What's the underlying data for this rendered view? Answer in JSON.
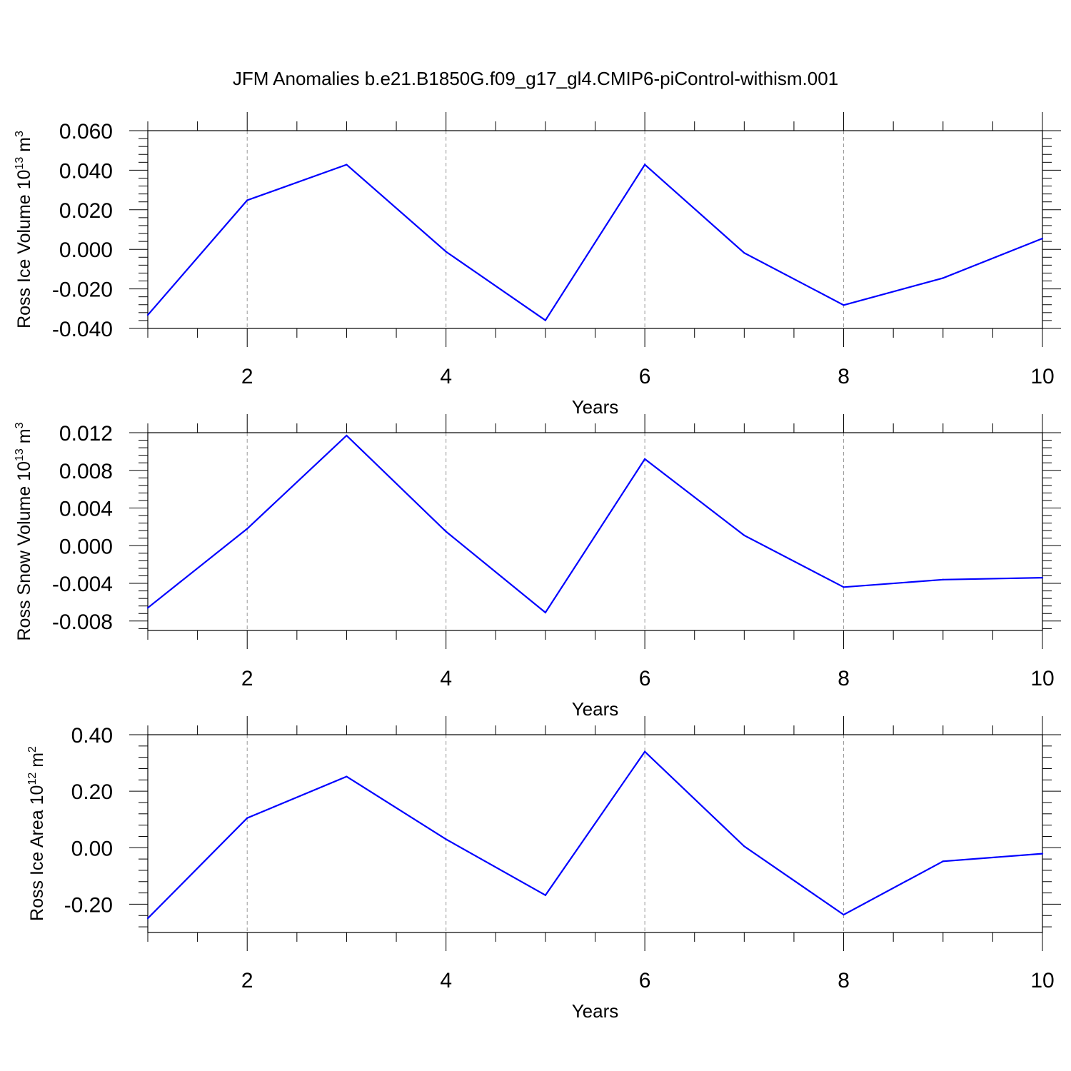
{
  "figure": {
    "title": "JFM Anomalies b.e21.B1850G.f09_g17_gl4.CMIP6-piControl-withism.001",
    "line_color": "#0000ff",
    "grid_color": "#999999"
  },
  "chart_data": [
    {
      "type": "line",
      "xlabel": "Years",
      "ylabel": {
        "prefix": "Ross Ice Volume 10",
        "exponent": "13",
        "unit": " m",
        "unit_exponent": "3"
      },
      "xlim": [
        1,
        10
      ],
      "ylim": [
        -0.04,
        0.06
      ],
      "xticks": [
        2,
        4,
        6,
        8,
        10
      ],
      "xtick_labels": [
        "2",
        "4",
        "6",
        "8",
        "10"
      ],
      "yticks": [
        -0.04,
        -0.02,
        0.0,
        0.02,
        0.04,
        0.06
      ],
      "ytick_labels": [
        "-0.040",
        "-0.020",
        "0.000",
        "0.020",
        "0.040",
        "0.060"
      ],
      "x": [
        1,
        2,
        3,
        4,
        5,
        6,
        7,
        8,
        9,
        10
      ],
      "values": [
        -0.0332,
        0.0248,
        0.0428,
        -0.0012,
        -0.0359,
        0.0428,
        -0.0018,
        -0.0282,
        -0.0145,
        0.0055
      ]
    },
    {
      "type": "line",
      "xlabel": "Years",
      "ylabel": {
        "prefix": "Ross Snow Volume 10",
        "exponent": "13",
        "unit": " m",
        "unit_exponent": "3"
      },
      "xlim": [
        1,
        10
      ],
      "ylim": [
        -0.009,
        0.012
      ],
      "xticks": [
        2,
        4,
        6,
        8,
        10
      ],
      "xtick_labels": [
        "2",
        "4",
        "6",
        "8",
        "10"
      ],
      "yticks": [
        -0.008,
        -0.004,
        0.0,
        0.004,
        0.008,
        0.012
      ],
      "ytick_labels": [
        "-0.008",
        "-0.004",
        "0.000",
        "0.004",
        "0.008",
        "0.012"
      ],
      "x": [
        1,
        2,
        3,
        4,
        5,
        6,
        7,
        8,
        9,
        10
      ],
      "values": [
        -0.0066,
        0.0018,
        0.0117,
        0.0015,
        -0.0071,
        0.0092,
        0.0011,
        -0.0044,
        -0.0036,
        -0.0034
      ]
    },
    {
      "type": "line",
      "xlabel": "Years",
      "ylabel": {
        "prefix": "Ross Ice Area 10",
        "exponent": "12",
        "unit": " m",
        "unit_exponent": "2"
      },
      "xlim": [
        1,
        10
      ],
      "ylim": [
        -0.3,
        0.4
      ],
      "xticks": [
        2,
        4,
        6,
        8,
        10
      ],
      "xtick_labels": [
        "2",
        "4",
        "6",
        "8",
        "10"
      ],
      "yticks": [
        -0.2,
        0.0,
        0.2,
        0.4
      ],
      "ytick_labels": [
        "-0.20",
        "0.00",
        "0.20",
        "0.40"
      ],
      "x": [
        1,
        2,
        3,
        4,
        5,
        6,
        7,
        8,
        9,
        10
      ],
      "values": [
        -0.25,
        0.105,
        0.252,
        0.03,
        -0.168,
        0.34,
        0.005,
        -0.237,
        -0.048,
        -0.021
      ]
    }
  ]
}
